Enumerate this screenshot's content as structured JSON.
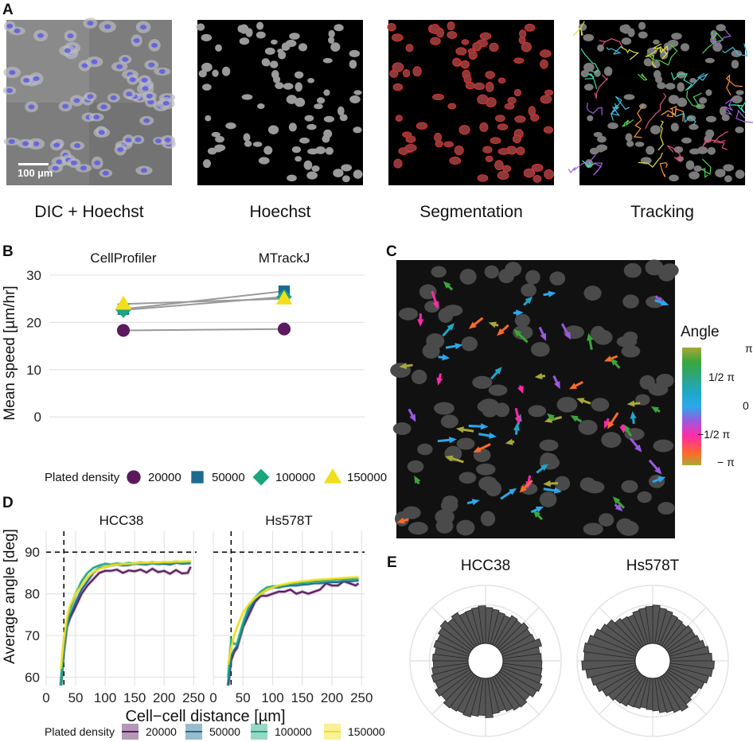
{
  "panel_labels": {
    "a": "A",
    "b": "B",
    "c": "C",
    "d": "D",
    "e": "E"
  },
  "panel_a": {
    "scale_bar": "100 µm",
    "captions": [
      "DIC + Hoechst",
      "Hoechst",
      "Segmentation",
      "Tracking"
    ]
  },
  "panel_c": {
    "legend_title": "Angle",
    "legend_ticks": [
      "π",
      "1/2 π",
      "0",
      "−1/2 π",
      "− π"
    ]
  },
  "colors": {
    "d20000": "#5b1a5e",
    "d50000": "#1c6b8f",
    "d100000": "#1aa67e",
    "d150000": "#f0df1b",
    "grid": "#e4e4e4",
    "line": "#9a9a9a",
    "bar": "#555555"
  },
  "chart_data": [
    {
      "type": "scatter",
      "panel": "B",
      "categories": [
        "CellProfiler",
        "MTrackJ"
      ],
      "ylabel": "Mean speed [µm/hr]",
      "ylim": [
        -4,
        31
      ],
      "yticks": [
        0,
        10,
        20,
        30
      ],
      "legend_title": "Plated density",
      "legend_position": "bottom",
      "series": [
        {
          "name": "20000",
          "shape": "circle",
          "values": [
            18.3,
            18.6
          ]
        },
        {
          "name": "50000",
          "shape": "square",
          "values": [
            22.8,
            26.6
          ]
        },
        {
          "name": "100000",
          "shape": "diamond",
          "values": [
            22.6,
            25.4
          ]
        },
        {
          "name": "150000",
          "shape": "triangle",
          "values": [
            23.9,
            25.0
          ]
        }
      ]
    },
    {
      "type": "line",
      "panel": "D",
      "facets": [
        "HCC38",
        "Hs578T"
      ],
      "xlabel": "Cell−cell distance [µm]",
      "ylabel": "Average angle [deg]",
      "xlim": [
        0,
        255
      ],
      "ylim": [
        58,
        95
      ],
      "xticks": [
        0,
        50,
        100,
        150,
        200,
        250
      ],
      "xtick_labels": [
        "0",
        "50",
        "100",
        "150",
        "200",
        "250"
      ],
      "yticks": [
        60,
        70,
        80,
        90
      ],
      "hline": 90,
      "vline": 30,
      "legend_title": "Plated density",
      "legend_position": "bottom",
      "x": [
        25,
        30,
        35,
        40,
        50,
        60,
        70,
        80,
        90,
        100,
        110,
        120,
        130,
        140,
        150,
        160,
        170,
        180,
        190,
        200,
        210,
        220,
        230,
        240,
        245
      ],
      "series": [
        {
          "name": "20000",
          "facet": "HCC38",
          "values": [
            58,
            66,
            72,
            74,
            77,
            80,
            82,
            83.5,
            85,
            85.5,
            85.5,
            85.8,
            85,
            85.6,
            85.4,
            85.8,
            85.1,
            86,
            85.2,
            85.5,
            84.8,
            85.7,
            84.9,
            85,
            86.5
          ]
        },
        {
          "name": "50000",
          "facet": "HCC38",
          "values": [
            58,
            67,
            72,
            74.5,
            78,
            81,
            83,
            85,
            86.2,
            86.5,
            86.8,
            87,
            86.8,
            86.9,
            87.2,
            87.1,
            87,
            87.3,
            87.1,
            87.2,
            87,
            87.4,
            87.2,
            87.3,
            87.3
          ]
        },
        {
          "name": "100000",
          "facet": "HCC38",
          "values": [
            58,
            68,
            73,
            76,
            80,
            83,
            85,
            86.2,
            86.8,
            87.2,
            87,
            87.3,
            87.1,
            87.4,
            87.2,
            87.5,
            87.3,
            87.6,
            87.3,
            87.5,
            87.4,
            87.7,
            87.5,
            87.6,
            87.6
          ]
        },
        {
          "name": "150000",
          "facet": "HCC38",
          "values": [
            62,
            69,
            74,
            77,
            80,
            82,
            84,
            85.2,
            86,
            86.5,
            86.8,
            87,
            87.1,
            87.2,
            87.3,
            87.4,
            87.4,
            87.5,
            87.5,
            87.6,
            87.6,
            87.7,
            87.7,
            87.8,
            87.8
          ]
        },
        {
          "name": "20000",
          "facet": "Hs578T",
          "values": [
            58,
            64,
            66,
            67,
            72,
            75,
            78,
            79.5,
            79.5,
            80,
            80.5,
            80.5,
            81,
            80,
            80.5,
            80,
            80.5,
            81,
            82.5,
            82,
            82,
            83,
            82.5,
            82,
            82.5
          ]
        },
        {
          "name": "50000",
          "facet": "Hs578T",
          "values": [
            58,
            65,
            66.5,
            67.5,
            72.5,
            76,
            78.5,
            80,
            81,
            81.5,
            81.5,
            81.8,
            82,
            82,
            82.2,
            82.3,
            82.5,
            82.5,
            82.7,
            82.8,
            82.8,
            83,
            83,
            83.1,
            83.2
          ]
        },
        {
          "name": "100000",
          "facet": "Hs578T",
          "values": [
            60,
            69,
            68,
            68,
            73,
            77,
            79,
            80.5,
            81.5,
            81.8,
            81.8,
            82,
            82.3,
            82.5,
            82.6,
            82.8,
            83,
            83,
            83.2,
            83.3,
            83.4,
            83.5,
            83.5,
            83.6,
            83.6
          ]
        },
        {
          "name": "150000",
          "facet": "Hs578T",
          "values": [
            63,
            67,
            70,
            72,
            75.5,
            77.5,
            79,
            80,
            81,
            81.5,
            82,
            82.3,
            82.6,
            82.8,
            83,
            83.1,
            83.3,
            83.4,
            83.5,
            83.6,
            83.7,
            83.8,
            83.9,
            84,
            84
          ]
        }
      ]
    },
    {
      "type": "bar",
      "panel": "E",
      "subtype": "polar-histogram",
      "facets": [
        "HCC38",
        "Hs578T"
      ],
      "bins": 48,
      "series": [
        {
          "name": "HCC38",
          "values": [
            0.66,
            0.64,
            0.7,
            0.62,
            0.6,
            0.63,
            0.58,
            0.6,
            0.55,
            0.57,
            0.6,
            0.62,
            0.65,
            0.63,
            0.61,
            0.6,
            0.66,
            0.62,
            0.68,
            0.64,
            0.6,
            0.62,
            0.58,
            0.61,
            0.6,
            0.63,
            0.66,
            0.64,
            0.7,
            0.66,
            0.72,
            0.7,
            0.68,
            0.7,
            0.66,
            0.64,
            0.68,
            0.62,
            0.6,
            0.64,
            0.68,
            0.7,
            0.66,
            0.72,
            0.75,
            0.7,
            0.68,
            0.67
          ]
        },
        {
          "name": "Hs578T",
          "values": [
            0.72,
            0.68,
            0.63,
            0.58,
            0.55,
            0.56,
            0.52,
            0.54,
            0.56,
            0.6,
            0.62,
            0.66,
            0.64,
            0.62,
            0.6,
            0.56,
            0.58,
            0.62,
            0.7,
            0.74,
            0.8,
            0.86,
            0.9,
            0.88,
            0.92,
            0.86,
            0.8,
            0.76,
            0.7,
            0.66,
            0.62,
            0.6,
            0.56,
            0.55,
            0.52,
            0.54,
            0.56,
            0.6,
            0.62,
            0.66,
            0.7,
            0.64,
            0.6,
            0.62,
            0.66,
            0.7,
            0.74,
            0.76
          ]
        }
      ]
    }
  ]
}
